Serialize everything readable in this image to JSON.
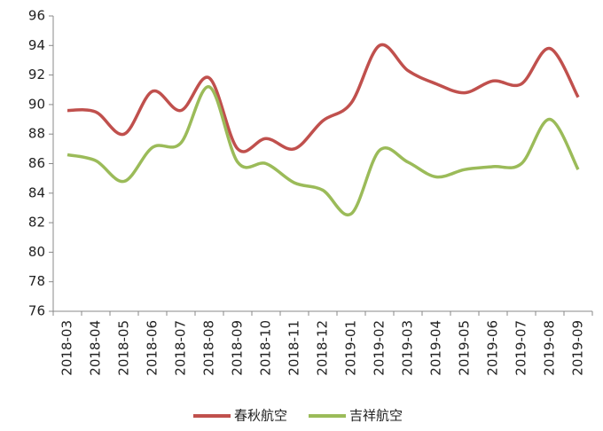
{
  "chart_data": {
    "type": "line",
    "categories": [
      "2018-03",
      "2018-04",
      "2018-05",
      "2018-06",
      "2018-07",
      "2018-08",
      "2018-09",
      "2018-10",
      "2018-11",
      "2018-12",
      "2019-01",
      "2019-02",
      "2019-03",
      "2019-04",
      "2019-05",
      "2019-06",
      "2019-07",
      "2019-08",
      "2019-09"
    ],
    "series": [
      {
        "name": "春秋航空",
        "color": "#c0504d",
        "values": [
          89.6,
          89.5,
          88.0,
          90.9,
          89.6,
          91.8,
          87.0,
          87.7,
          87.0,
          88.9,
          90.1,
          94.0,
          92.3,
          91.4,
          90.8,
          91.6,
          91.4,
          93.8,
          90.5
        ]
      },
      {
        "name": "吉祥航空",
        "color": "#9bbb59",
        "values": [
          86.6,
          86.2,
          84.8,
          87.1,
          87.4,
          91.2,
          86.1,
          86.0,
          84.7,
          84.2,
          82.6,
          86.9,
          86.1,
          85.1,
          85.6,
          85.8,
          86.0,
          89.0,
          85.6
        ]
      }
    ],
    "ylim": [
      76,
      96
    ],
    "yticks": [
      76,
      78,
      80,
      82,
      84,
      86,
      88,
      90,
      92,
      94,
      96
    ],
    "grid": false,
    "legend": "bottom",
    "smooth": true
  }
}
